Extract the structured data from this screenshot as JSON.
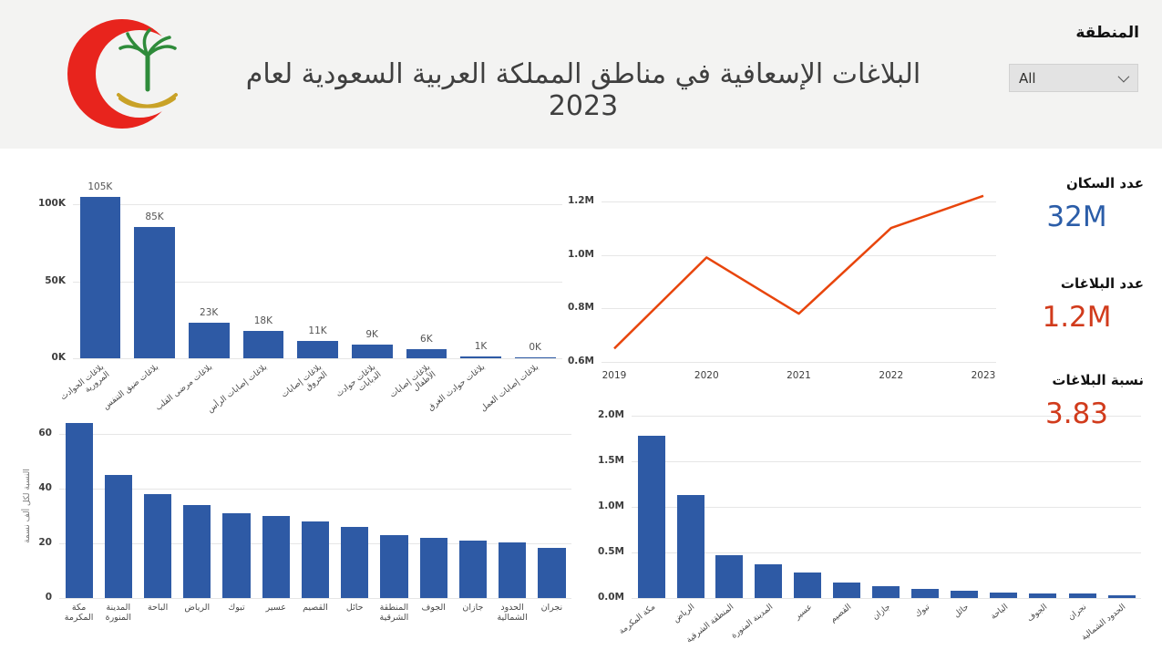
{
  "header": {
    "title": "البلاغات الإسعافية في مناطق المملكة العربية السعودية لعام 2023",
    "logo_name": "saudi-red-crescent-emblem",
    "region_label": "المنطقة",
    "region_value": "All"
  },
  "stats": {
    "population_label": "عدد السكان",
    "population_value": "32M",
    "reports_label": "عدد البلاغات",
    "reports_value": "1.2M",
    "ratio_label": "نسبة البلاغات",
    "ratio_value": "3.83"
  },
  "colors": {
    "bar": "#2e5aa5",
    "line": "#e8450c",
    "stat_blue": "#2b5da8",
    "stat_red": "#d13b1c",
    "header_bg": "#f3f3f2"
  },
  "chart_data": [
    {
      "id": "report-types",
      "type": "bar",
      "categories": [
        "بلاغات الحوادث المرورية",
        "بلاغات ضيق التنفس",
        "بلاغات مرضى القلب",
        "بلاغات إصابات الرأس",
        "بلاغات إصابات الحروق",
        "بلاغات حوادث الدبابات",
        "بلاغات إصابات الأطفال",
        "بلاغات حوادث الغرق",
        "بلاغات إصابات العمل"
      ],
      "values": [
        105000,
        85000,
        23000,
        18000,
        11000,
        9000,
        6000,
        1000,
        400
      ],
      "data_labels": [
        "105K",
        "85K",
        "23K",
        "18K",
        "11K",
        "9K",
        "6K",
        "1K",
        "0K"
      ],
      "y_ticks": [
        "0K",
        "50K",
        "100K"
      ],
      "ylim": [
        0,
        110000
      ],
      "title": ""
    },
    {
      "id": "reports-by-year",
      "type": "line",
      "x": [
        "2019",
        "2020",
        "2021",
        "2022",
        "2023"
      ],
      "values": [
        650000,
        990000,
        780000,
        1100000,
        1220000
      ],
      "y_ticks": [
        "0.6M",
        "0.8M",
        "1.0M",
        "1.2M"
      ],
      "ylim": [
        600000,
        1250000
      ],
      "title": ""
    },
    {
      "id": "rate-per-region",
      "type": "bar",
      "ylabel": "النسبة لكل ألف نسمة",
      "categories": [
        "مكة المكرمة",
        "المدينة المنورة",
        "الباحة",
        "الرياض",
        "تبوك",
        "عسير",
        "القصيم",
        "حائل",
        "المنطقة الشرقية",
        "الجوف",
        "جازان",
        "الحدود الشمالية",
        "نجران"
      ],
      "values": [
        64,
        45,
        38,
        34,
        31,
        30,
        28,
        26,
        23,
        22,
        21,
        20.5,
        18.5
      ],
      "y_ticks": [
        "0",
        "20",
        "40",
        "60"
      ],
      "ylim": [
        0,
        66
      ],
      "title": ""
    },
    {
      "id": "reports-per-region",
      "type": "bar",
      "categories": [
        "مكة المكرمة",
        "الرياض",
        "المنطقة الشرقية",
        "المدينة المنورة",
        "عسير",
        "القصيم",
        "جازان",
        "تبوك",
        "حائل",
        "الباحة",
        "الجوف",
        "نجران",
        "الحدود الشمالية"
      ],
      "values": [
        1780000,
        1130000,
        470000,
        370000,
        280000,
        170000,
        130000,
        100000,
        80000,
        65000,
        55000,
        50000,
        30000
      ],
      "y_ticks": [
        "0.0M",
        "0.5M",
        "1.0M",
        "1.5M",
        "2.0M"
      ],
      "ylim": [
        0,
        2000000
      ],
      "title": ""
    }
  ]
}
